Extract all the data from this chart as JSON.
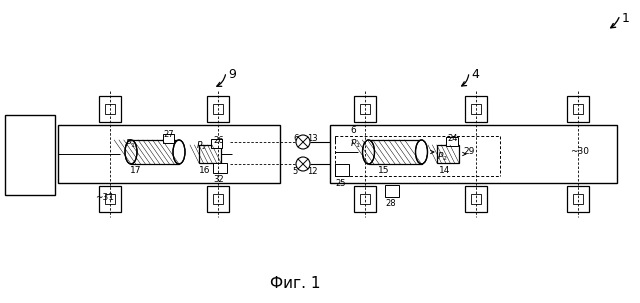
{
  "bg_color": "#ffffff",
  "title": "Фиг. 1",
  "title_fontsize": 11,
  "fig_width": 6.4,
  "fig_height": 3.03,
  "dpi": 100
}
